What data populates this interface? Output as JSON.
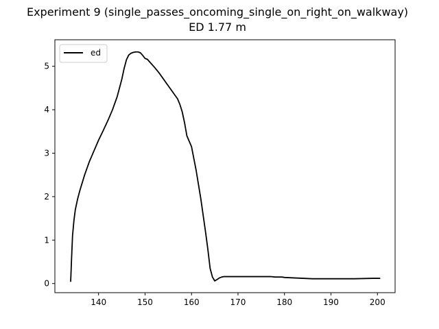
{
  "chart_data": {
    "type": "line",
    "title": "Experiment 9 (single_passes_oncoming_single_on_right_on_walkway)",
    "subtitle": "ED 1.77 m",
    "xlabel": "",
    "ylabel": "",
    "xlim": [
      130.6,
      203.8
    ],
    "ylim": [
      -0.21,
      5.61
    ],
    "xticks": [
      140,
      150,
      160,
      170,
      180,
      190,
      200
    ],
    "yticks": [
      0,
      1,
      2,
      3,
      4,
      5
    ],
    "grid": false,
    "legend_position": "top-left",
    "series": [
      {
        "name": "ed",
        "color": "#000000",
        "x": [
          134.0,
          134.2,
          134.4,
          134.7,
          135.0,
          135.5,
          136.0,
          137.0,
          138.0,
          139.0,
          140.0,
          141.0,
          142.0,
          143.0,
          144.0,
          145.0,
          145.5,
          146.0,
          146.5,
          147.0,
          147.5,
          148.0,
          148.5,
          149.0,
          149.5,
          150.0,
          150.5,
          151.0,
          152.0,
          153.0,
          154.0,
          155.0,
          156.0,
          157.0,
          157.5,
          158.0,
          158.5,
          159.0,
          160.0,
          161.0,
          162.0,
          163.0,
          163.5,
          164.0,
          164.5,
          165.0,
          165.3,
          165.6,
          166.0,
          166.5,
          167.0,
          168.0,
          170.0,
          172.0,
          175.0,
          177.0,
          178.0,
          179.5,
          180.0,
          182.0,
          184.0,
          186.0,
          190.0,
          195.0,
          199.0,
          200.5
        ],
        "y": [
          0.05,
          0.6,
          1.1,
          1.45,
          1.7,
          1.95,
          2.15,
          2.5,
          2.8,
          3.05,
          3.3,
          3.52,
          3.75,
          4.0,
          4.3,
          4.7,
          4.95,
          5.15,
          5.26,
          5.3,
          5.32,
          5.33,
          5.33,
          5.31,
          5.25,
          5.18,
          5.16,
          5.1,
          4.98,
          4.85,
          4.7,
          4.55,
          4.4,
          4.25,
          4.12,
          3.95,
          3.7,
          3.4,
          3.15,
          2.6,
          1.95,
          1.2,
          0.8,
          0.35,
          0.15,
          0.06,
          0.08,
          0.1,
          0.13,
          0.15,
          0.16,
          0.16,
          0.16,
          0.16,
          0.16,
          0.16,
          0.15,
          0.15,
          0.14,
          0.13,
          0.12,
          0.11,
          0.11,
          0.11,
          0.12,
          0.12
        ]
      }
    ]
  }
}
